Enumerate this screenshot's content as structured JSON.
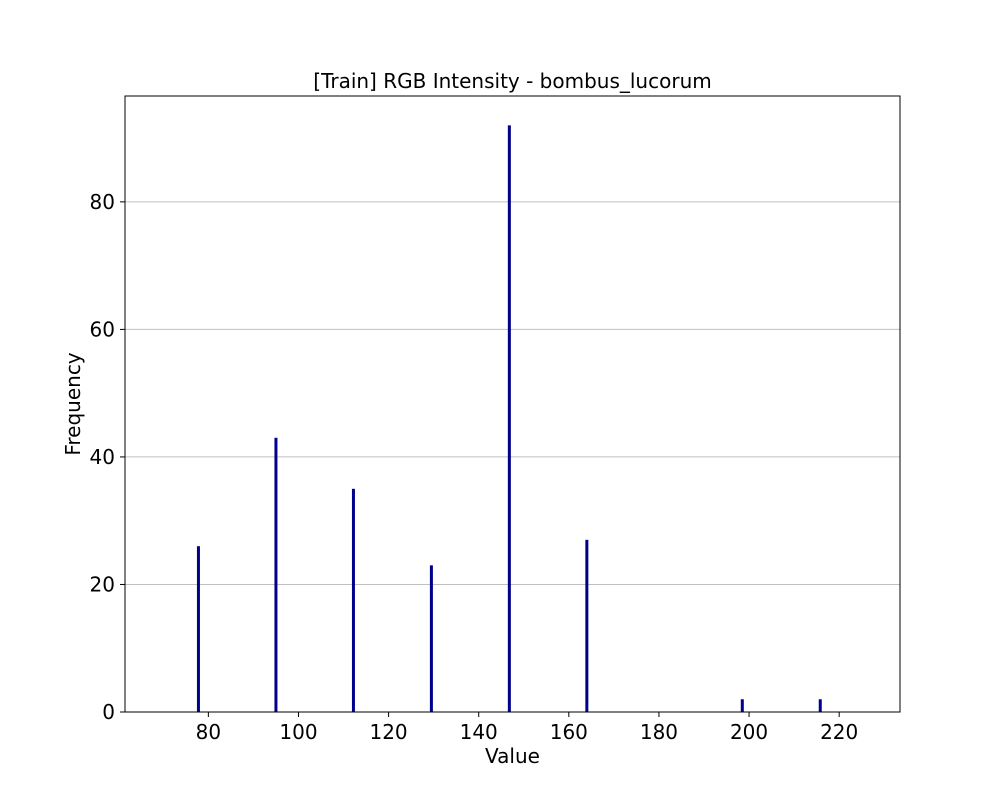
{
  "chart_data": {
    "type": "bar",
    "title": "[Train] RGB Intensity - bombus_lucorum",
    "xlabel": "Value",
    "ylabel": "Frequency",
    "xlim": [
      61.5,
      233.5
    ],
    "ylim": [
      0,
      96.6
    ],
    "xticks": [
      80,
      100,
      120,
      140,
      160,
      180,
      200,
      220
    ],
    "yticks": [
      0,
      20,
      40,
      60,
      80
    ],
    "grid": "y",
    "bar_color": "#00008b",
    "bins": [
      {
        "x": 77.8,
        "value": 26
      },
      {
        "x": 95.0,
        "value": 43
      },
      {
        "x": 112.2,
        "value": 35
      },
      {
        "x": 129.5,
        "value": 23
      },
      {
        "x": 146.8,
        "value": 92
      },
      {
        "x": 164.0,
        "value": 27
      },
      {
        "x": 198.5,
        "value": 2
      },
      {
        "x": 215.8,
        "value": 2
      }
    ]
  }
}
